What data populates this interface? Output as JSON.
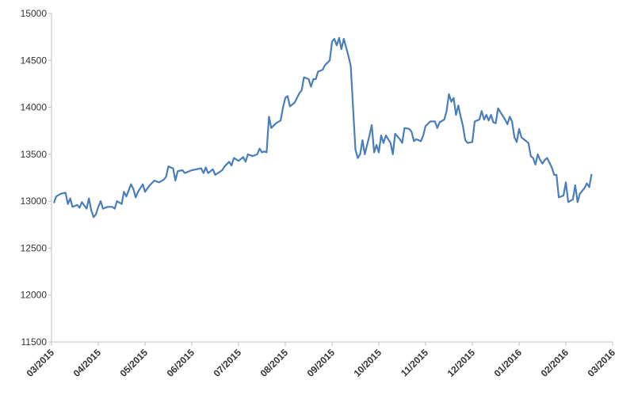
{
  "chart_data": {
    "type": "line",
    "color": "#4a7ebb",
    "x": [
      0.05,
      0.1,
      0.2,
      0.3,
      0.35,
      0.4,
      0.45,
      0.55,
      0.6,
      0.65,
      0.75,
      0.8,
      0.85,
      0.9,
      0.95,
      1.0,
      1.05,
      1.1,
      1.2,
      1.3,
      1.35,
      1.4,
      1.5,
      1.55,
      1.6,
      1.7,
      1.75,
      1.8,
      1.85,
      1.95,
      2.0,
      2.1,
      2.2,
      2.3,
      2.4,
      2.45,
      2.5,
      2.6,
      2.65,
      2.7,
      2.8,
      2.85,
      3.0,
      3.1,
      3.2,
      3.25,
      3.3,
      3.35,
      3.45,
      3.5,
      3.65,
      3.7,
      3.8,
      3.85,
      3.9,
      4.0,
      4.1,
      4.15,
      4.2,
      4.3,
      4.4,
      4.45,
      4.5,
      4.55,
      4.6,
      4.65,
      4.7,
      4.8,
      4.9,
      4.95,
      5.0,
      5.05,
      5.1,
      5.2,
      5.3,
      5.35,
      5.4,
      5.5,
      5.55,
      5.6,
      5.65,
      5.7,
      5.8,
      5.85,
      5.95,
      6.0,
      6.05,
      6.1,
      6.15,
      6.2,
      6.25,
      6.35,
      6.4,
      6.45,
      6.5,
      6.55,
      6.6,
      6.65,
      6.7,
      6.8,
      6.85,
      6.9,
      6.95,
      7.0,
      7.05,
      7.1,
      7.15,
      7.25,
      7.3,
      7.35,
      7.45,
      7.5,
      7.55,
      7.65,
      7.7,
      7.75,
      7.8,
      7.9,
      7.95,
      8.0,
      8.1,
      8.2,
      8.25,
      8.3,
      8.4,
      8.45,
      8.5,
      8.55,
      8.6,
      8.65,
      8.7,
      8.75,
      8.8,
      8.85,
      8.9,
      9.0,
      9.05,
      9.15,
      9.2,
      9.25,
      9.3,
      9.35,
      9.4,
      9.45,
      9.5,
      9.55,
      9.6,
      9.7,
      9.75,
      9.8,
      9.85,
      9.9,
      9.95,
      10.0,
      10.05,
      10.2,
      10.25,
      10.3,
      10.35,
      10.4,
      10.45,
      10.5,
      10.55,
      10.6,
      10.7,
      10.75,
      10.8,
      10.85,
      10.95,
      11.0,
      11.05,
      11.15,
      11.2,
      11.25,
      11.3,
      11.4,
      11.45,
      11.5,
      11.55
    ],
    "values": [
      12980,
      13050,
      13080,
      13090,
      12970,
      13030,
      12940,
      12960,
      12930,
      12990,
      12920,
      13030,
      12900,
      12830,
      12860,
      12940,
      13000,
      12920,
      12940,
      12940,
      12920,
      13000,
      12970,
      13100,
      13050,
      13180,
      13130,
      13040,
      13100,
      13180,
      13100,
      13170,
      13220,
      13200,
      13230,
      13260,
      13370,
      13350,
      13220,
      13320,
      13330,
      13300,
      13330,
      13340,
      13350,
      13300,
      13360,
      13300,
      13340,
      13280,
      13330,
      13370,
      13420,
      13380,
      13460,
      13430,
      13470,
      13420,
      13500,
      13480,
      13500,
      13560,
      13520,
      13530,
      13520,
      13900,
      13780,
      13830,
      13860,
      14000,
      14100,
      14120,
      14010,
      14050,
      14150,
      14180,
      14320,
      14300,
      14220,
      14300,
      14300,
      14380,
      14400,
      14450,
      14500,
      14700,
      14730,
      14660,
      14740,
      14620,
      14730,
      14550,
      14440,
      13980,
      13550,
      13460,
      13500,
      13650,
      13500,
      13700,
      13810,
      13520,
      13600,
      13520,
      13700,
      13620,
      13700,
      13620,
      13500,
      13720,
      13660,
      13620,
      13780,
      13770,
      13740,
      13640,
      13660,
      13640,
      13700,
      13800,
      13850,
      13850,
      13780,
      13840,
      13870,
      13960,
      14140,
      14060,
      14100,
      13920,
      14020,
      13900,
      13800,
      13650,
      13620,
      13630,
      13850,
      13870,
      13960,
      13870,
      13920,
      13860,
      13920,
      13840,
      13830,
      13990,
      13950,
      13870,
      13820,
      13900,
      13850,
      13680,
      13630,
      13770,
      13680,
      13620,
      13480,
      13460,
      13390,
      13500,
      13440,
      13400,
      13440,
      13460,
      13360,
      13280,
      13280,
      13040,
      13060,
      13200,
      12990,
      13020,
      13170,
      12990,
      13080,
      13140,
      13190,
      13150,
      13290
    ],
    "xlim": [
      0,
      12
    ],
    "xticks": [
      {
        "value": 0,
        "label": "03/2015"
      },
      {
        "value": 1,
        "label": "04/2015"
      },
      {
        "value": 2,
        "label": "05/2015"
      },
      {
        "value": 3,
        "label": "06/2015"
      },
      {
        "value": 4,
        "label": "07/2015"
      },
      {
        "value": 5,
        "label": "08/2015"
      },
      {
        "value": 6,
        "label": "09/2015"
      },
      {
        "value": 7,
        "label": "10/2015"
      },
      {
        "value": 8,
        "label": "11/2015"
      },
      {
        "value": 9,
        "label": "12/2015"
      },
      {
        "value": 10,
        "label": "01/2016"
      },
      {
        "value": 11,
        "label": "02/2016"
      },
      {
        "value": 12,
        "label": "03/2016"
      }
    ],
    "ylim": [
      11500,
      15000
    ],
    "yticks": [
      11500,
      12000,
      12500,
      13000,
      13500,
      14000,
      14500,
      15000
    ]
  }
}
